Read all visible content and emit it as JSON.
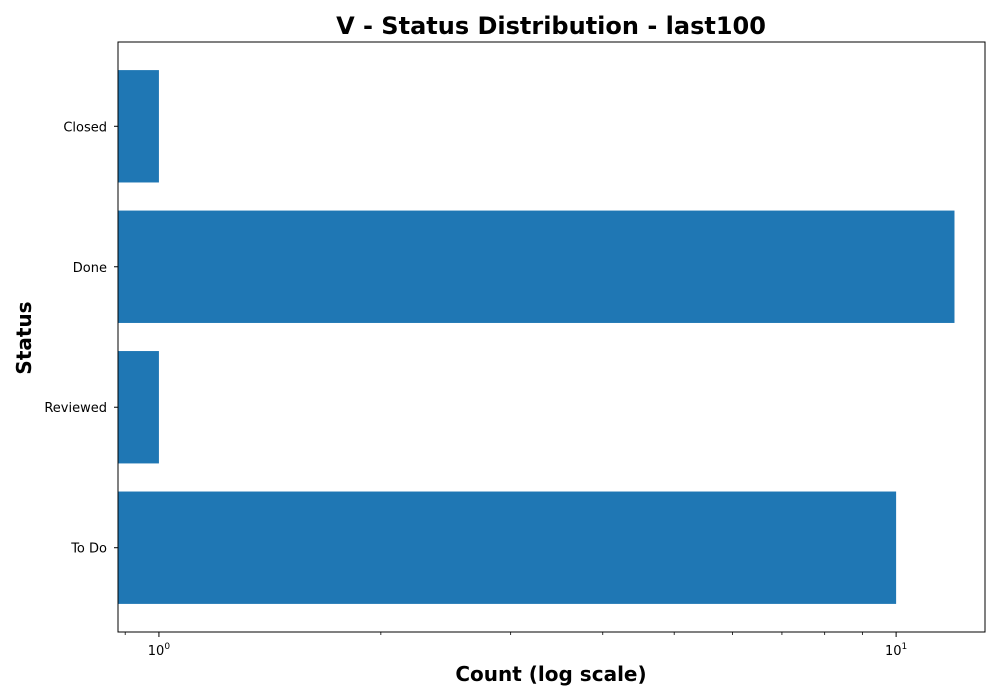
{
  "chart_data": {
    "type": "bar",
    "orientation": "horizontal",
    "title": "V - Status Distribution - last100",
    "xlabel": "Count (log scale)",
    "ylabel": "Status",
    "x_scale": "log",
    "xlim": [
      0.88,
      13.2
    ],
    "x_ticks": [
      {
        "value": 1,
        "base": "10",
        "exp": "0"
      },
      {
        "value": 10,
        "base": "10",
        "exp": "1"
      }
    ],
    "categories": [
      "Closed",
      "Done",
      "Reviewed",
      "To Do"
    ],
    "values": [
      1,
      12,
      1,
      10
    ],
    "bar_color": "#1f77b4",
    "grid": false,
    "legend": false
  }
}
